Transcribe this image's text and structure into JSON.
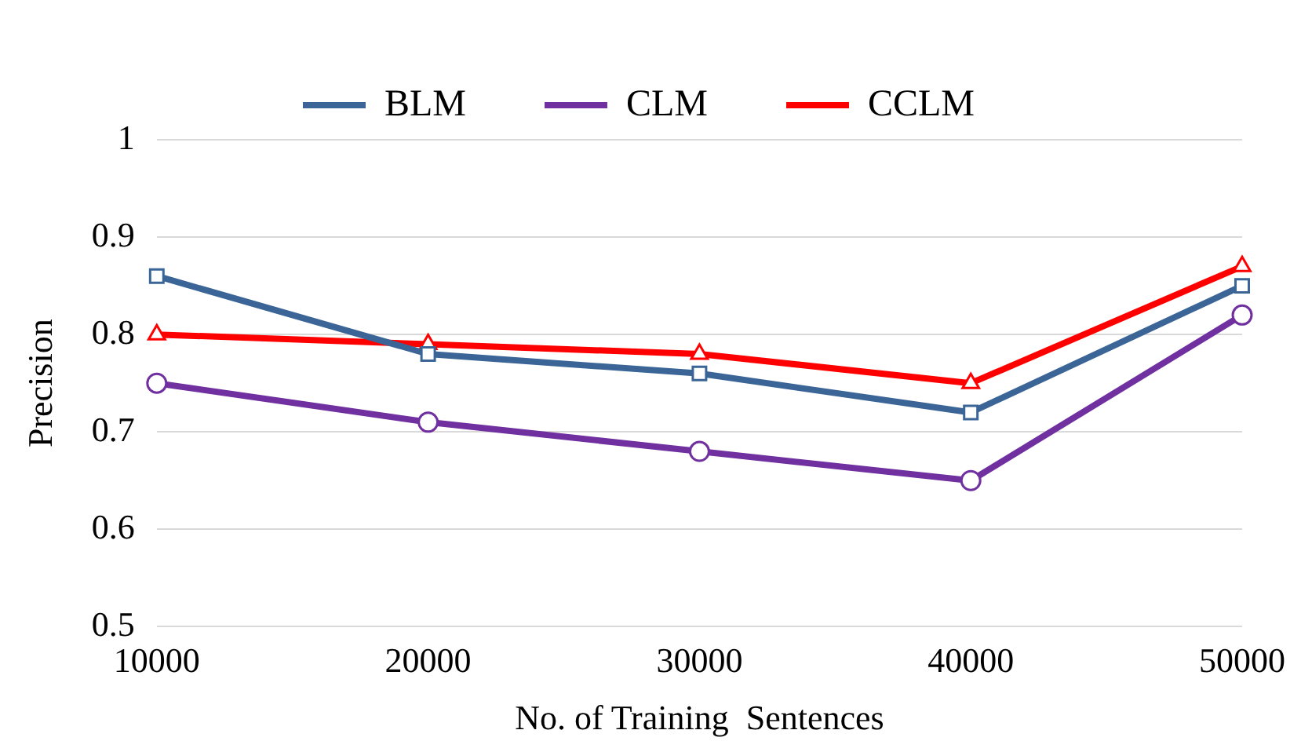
{
  "chart_data": {
    "type": "line",
    "xlabel": "No. of Training  Sentences",
    "ylabel": "Precision",
    "categories": [
      "10000",
      "20000",
      "30000",
      "40000",
      "50000"
    ],
    "series": [
      {
        "name": "BLM",
        "color": "#3a6596",
        "marker": "square",
        "values": [
          0.86,
          0.78,
          0.76,
          0.72,
          0.85
        ]
      },
      {
        "name": "CLM",
        "color": "#7030a0",
        "marker": "circle",
        "values": [
          0.75,
          0.71,
          0.68,
          0.65,
          0.82
        ]
      },
      {
        "name": "CCLM",
        "color": "#ff0000",
        "marker": "triangle",
        "values": [
          0.8,
          0.79,
          0.78,
          0.75,
          0.87
        ]
      }
    ],
    "ylim": [
      0.5,
      1
    ],
    "yticks": [
      0.5,
      0.6,
      0.7,
      0.8,
      0.9,
      1
    ],
    "grid": "y",
    "legend": "top"
  }
}
